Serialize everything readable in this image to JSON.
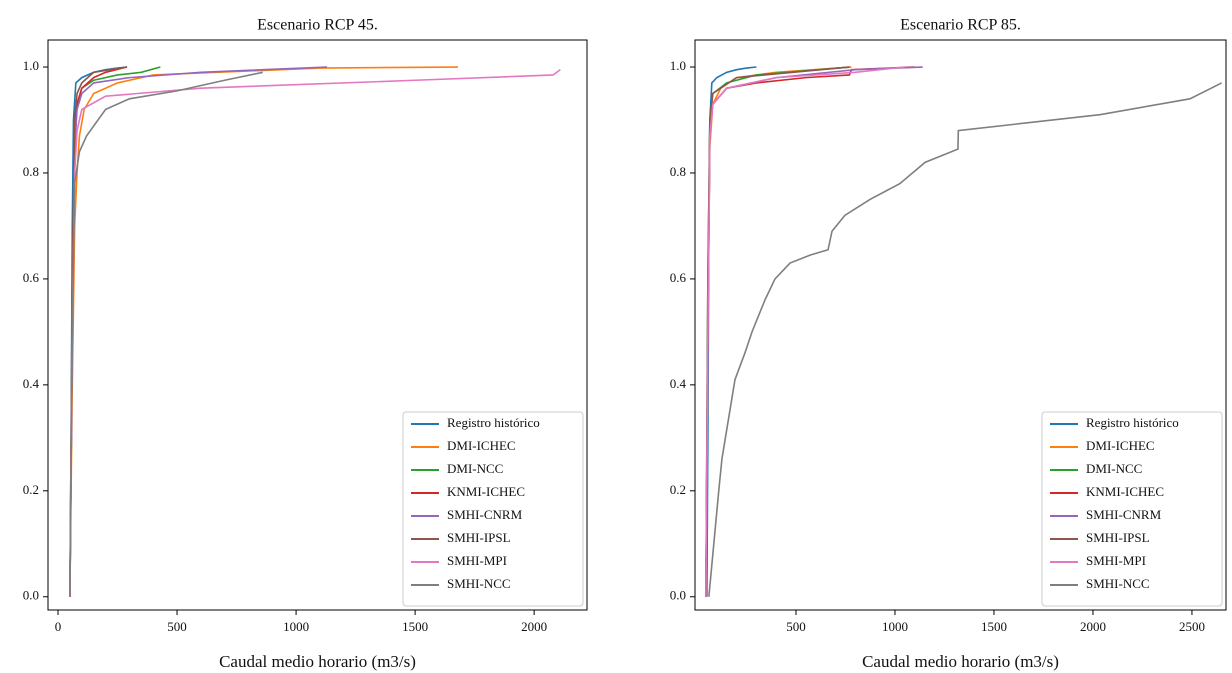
{
  "chart_data": [
    {
      "type": "line",
      "title": "Escenario RCP 45.",
      "xlabel": "Caudal medio horario (m3/s)",
      "xlim": [
        -42,
        2222
      ],
      "ylim": [
        -0.025,
        1.051
      ],
      "xticks": [
        0,
        500,
        1000,
        1500,
        2000
      ],
      "yticks": [
        {
          "value": 0,
          "label": "0.0"
        },
        0.2,
        0.4,
        0.6,
        0.8,
        {
          "value": 1,
          "label": "1.0"
        }
      ],
      "legend": "lower right",
      "series": [
        {
          "name": "Registro histórico",
          "color": "#1f77b4",
          "x": [
            50,
            55,
            60,
            65,
            75,
            100,
            150,
            200,
            250,
            290
          ],
          "values": [
            0,
            0.3,
            0.7,
            0.9,
            0.97,
            0.98,
            0.99,
            0.995,
            0.998,
            1.0
          ]
        },
        {
          "name": "DMI-ICHEC",
          "color": "#ff7f0e",
          "x": [
            50,
            60,
            70,
            80,
            90,
            110,
            150,
            250,
            400,
            1100,
            1680
          ],
          "values": [
            0,
            0.4,
            0.7,
            0.8,
            0.87,
            0.92,
            0.95,
            0.97,
            0.985,
            0.998,
            1.0
          ]
        },
        {
          "name": "DMI-NCC",
          "color": "#2ca02c",
          "x": [
            50,
            60,
            70,
            80,
            100,
            150,
            250,
            350,
            430
          ],
          "values": [
            0,
            0.5,
            0.85,
            0.93,
            0.96,
            0.975,
            0.985,
            0.99,
            1.0
          ]
        },
        {
          "name": "KNMI-ICHEC",
          "color": "#d62728",
          "x": [
            50,
            60,
            70,
            80,
            100,
            150,
            200,
            290
          ],
          "values": [
            0,
            0.5,
            0.85,
            0.93,
            0.96,
            0.98,
            0.99,
            1.0
          ]
        },
        {
          "name": "SMHI-CNRM",
          "color": "#9467bd",
          "x": [
            50,
            60,
            70,
            80,
            100,
            150,
            300,
            600,
            1130
          ],
          "values": [
            0,
            0.5,
            0.85,
            0.92,
            0.95,
            0.97,
            0.98,
            0.99,
            1.0
          ]
        },
        {
          "name": "SMHI-IPSL",
          "color": "#8c564b",
          "x": [
            50,
            60,
            70,
            80,
            100,
            150,
            290
          ],
          "values": [
            0,
            0.6,
            0.9,
            0.95,
            0.97,
            0.99,
            1.0
          ]
        },
        {
          "name": "SMHI-MPI",
          "color": "#e377c2",
          "x": [
            50,
            60,
            70,
            80,
            100,
            200,
            600,
            1500,
            2080,
            2110
          ],
          "values": [
            0,
            0.5,
            0.8,
            0.88,
            0.92,
            0.945,
            0.96,
            0.975,
            0.985,
            0.995
          ]
        },
        {
          "name": "SMHI-NCC",
          "color": "#7f7f7f",
          "x": [
            50,
            60,
            70,
            90,
            120,
            200,
            300,
            500,
            700,
            860
          ],
          "values": [
            0,
            0.5,
            0.78,
            0.84,
            0.87,
            0.92,
            0.94,
            0.955,
            0.975,
            0.99
          ]
        }
      ]
    },
    {
      "type": "line",
      "title": "Escenario RCP 85.",
      "xlabel": "Caudal medio horario (m3/s)",
      "xlim": [
        -10,
        2672
      ],
      "ylim": [
        -0.025,
        1.051
      ],
      "xticks": [
        500,
        1000,
        1500,
        2000,
        2500
      ],
      "yticks": [
        {
          "value": 0,
          "label": "0.0"
        },
        0.2,
        0.4,
        0.6,
        0.8,
        {
          "value": 1,
          "label": "1.0"
        }
      ],
      "legend": "lower right",
      "series": [
        {
          "name": "Registro histórico",
          "color": "#1f77b4",
          "x": [
            50,
            55,
            60,
            65,
            75,
            100,
            150,
            200,
            250,
            300
          ],
          "values": [
            0,
            0.3,
            0.7,
            0.9,
            0.97,
            0.98,
            0.99,
            0.995,
            0.998,
            1.0
          ]
        },
        {
          "name": "DMI-ICHEC",
          "color": "#ff7f0e",
          "x": [
            45,
            55,
            65,
            80,
            120,
            200,
            400,
            780
          ],
          "values": [
            0,
            0.5,
            0.85,
            0.93,
            0.96,
            0.98,
            0.99,
            1.0
          ]
        },
        {
          "name": "DMI-NCC",
          "color": "#2ca02c",
          "x": [
            45,
            55,
            65,
            80,
            150,
            300,
            770
          ],
          "values": [
            0,
            0.6,
            0.9,
            0.95,
            0.97,
            0.985,
            1.0
          ]
        },
        {
          "name": "KNMI-ICHEC",
          "color": "#d62728",
          "x": [
            45,
            55,
            65,
            80,
            150,
            300,
            550,
            770,
            780,
            1100
          ],
          "values": [
            0,
            0.5,
            0.88,
            0.93,
            0.96,
            0.97,
            0.98,
            0.985,
            0.995,
            1.0
          ]
        },
        {
          "name": "SMHI-CNRM",
          "color": "#9467bd",
          "x": [
            45,
            55,
            65,
            80,
            150,
            400,
            800,
            1140
          ],
          "values": [
            0,
            0.5,
            0.87,
            0.93,
            0.96,
            0.98,
            0.995,
            1.0
          ]
        },
        {
          "name": "SMHI-IPSL",
          "color": "#8c564b",
          "x": [
            45,
            55,
            65,
            80,
            200,
            770
          ],
          "values": [
            0,
            0.6,
            0.9,
            0.95,
            0.98,
            1.0
          ]
        },
        {
          "name": "SMHI-MPI",
          "color": "#e377c2",
          "x": [
            45,
            55,
            65,
            80,
            150,
            400,
            800,
            1050
          ],
          "values": [
            0,
            0.5,
            0.87,
            0.93,
            0.96,
            0.98,
            0.99,
            1.0
          ]
        },
        {
          "name": "SMHI-NCC",
          "color": "#7f7f7f",
          "x": [
            60,
            110,
            126,
            192,
            242,
            278,
            343,
            394,
            470,
            571,
            662,
            682,
            747,
            874,
            1025,
            1152,
            1318,
            1320,
            2035,
            2490,
            2650
          ],
          "values": [
            0,
            0.2,
            0.26,
            0.41,
            0.46,
            0.5,
            0.56,
            0.6,
            0.63,
            0.645,
            0.655,
            0.69,
            0.72,
            0.75,
            0.78,
            0.82,
            0.845,
            0.88,
            0.91,
            0.94,
            0.97
          ]
        }
      ]
    }
  ]
}
